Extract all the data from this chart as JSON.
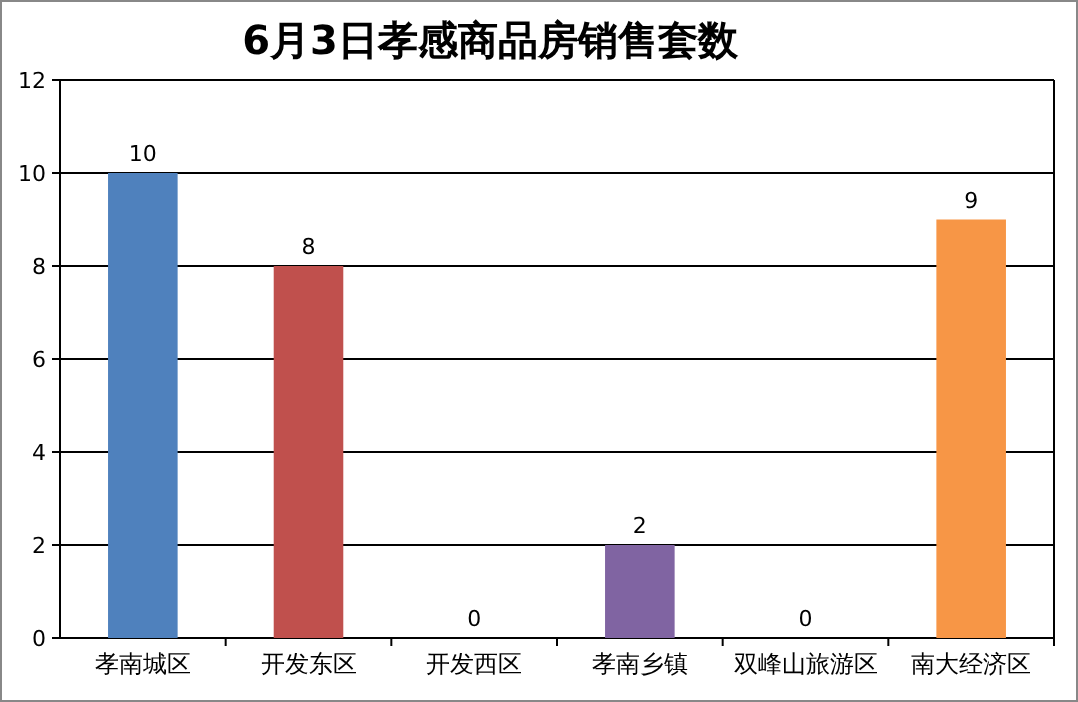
{
  "chart_data": {
    "type": "bar",
    "title": "6月3日孝感商品房销售套数",
    "categories": [
      "孝南城区",
      "开发东区",
      "开发西区",
      "孝南乡镇",
      "双峰山旅游区",
      "南大经济区"
    ],
    "values": [
      10,
      8,
      0,
      2,
      0,
      9
    ],
    "colors": [
      "#4f81bd",
      "#c0504d",
      "#9bbb59",
      "#8064a2",
      "#4bacc6",
      "#f79646"
    ],
    "ylim": [
      0,
      12
    ],
    "yticks": [
      0,
      2,
      4,
      6,
      8,
      10,
      12
    ],
    "grid": "y",
    "data_labels": true
  }
}
